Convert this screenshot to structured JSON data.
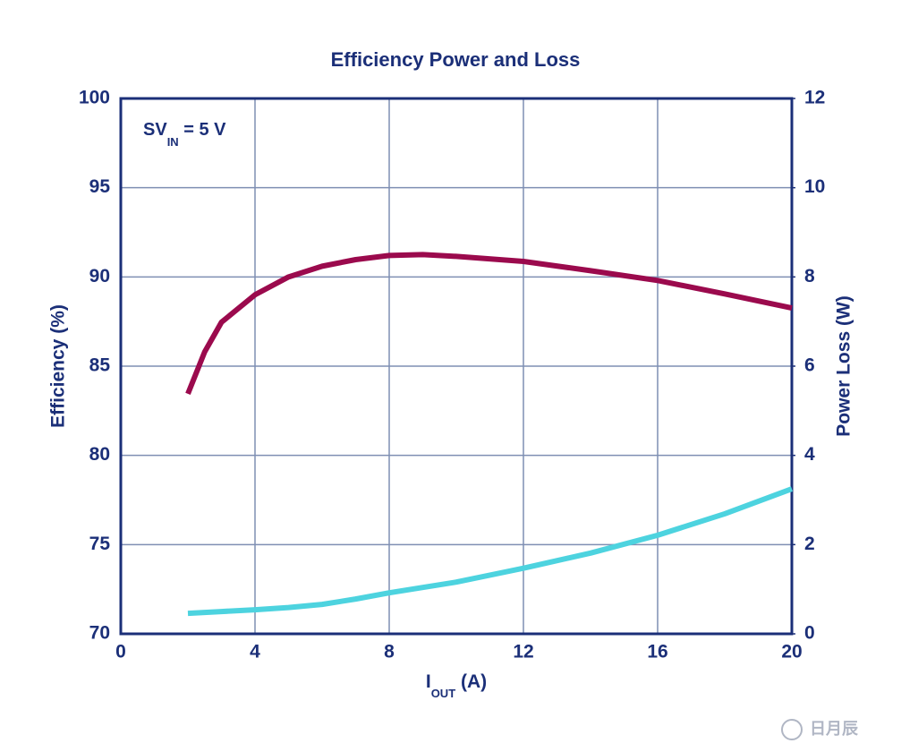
{
  "chart_data": {
    "type": "line",
    "title": "Efficiency Power and Loss",
    "annotation": {
      "text": "SV",
      "sub": "IN",
      "rest": " = 5 V"
    },
    "x_label": {
      "text": "I",
      "sub": "OUT",
      "rest": " (A)"
    },
    "y_label": "Efficiency (%)",
    "y2_label": "Power Loss (W)",
    "x": [
      2,
      2.5,
      3,
      4,
      5,
      6,
      7,
      8,
      9,
      10,
      12,
      14,
      16,
      18,
      20
    ],
    "series": [
      {
        "color": "#9b0a4d",
        "values": [
          83.45,
          85.8,
          87.46,
          89.0,
          90.0,
          90.6,
          90.97,
          91.2,
          91.25,
          91.15,
          90.87,
          90.35,
          89.8,
          89.05,
          88.26
        ]
      },
      {
        "color": "#4dd3df",
        "axis": "y2",
        "values": [
          0.46,
          0.48,
          0.5,
          0.54,
          0.59,
          0.66,
          0.78,
          0.92,
          1.04,
          1.16,
          1.47,
          1.81,
          2.21,
          2.69,
          3.25
        ]
      }
    ],
    "xlim": [
      0,
      20
    ],
    "xticks": [
      0,
      4,
      8,
      12,
      16,
      20
    ],
    "ylim": [
      70,
      100
    ],
    "yticks": [
      70,
      75,
      80,
      85,
      90,
      95,
      100
    ],
    "y2lim": [
      0,
      12
    ],
    "y2ticks": [
      0,
      2,
      4,
      6,
      8,
      10,
      12
    ],
    "grid": true,
    "watermark": "日月辰"
  }
}
